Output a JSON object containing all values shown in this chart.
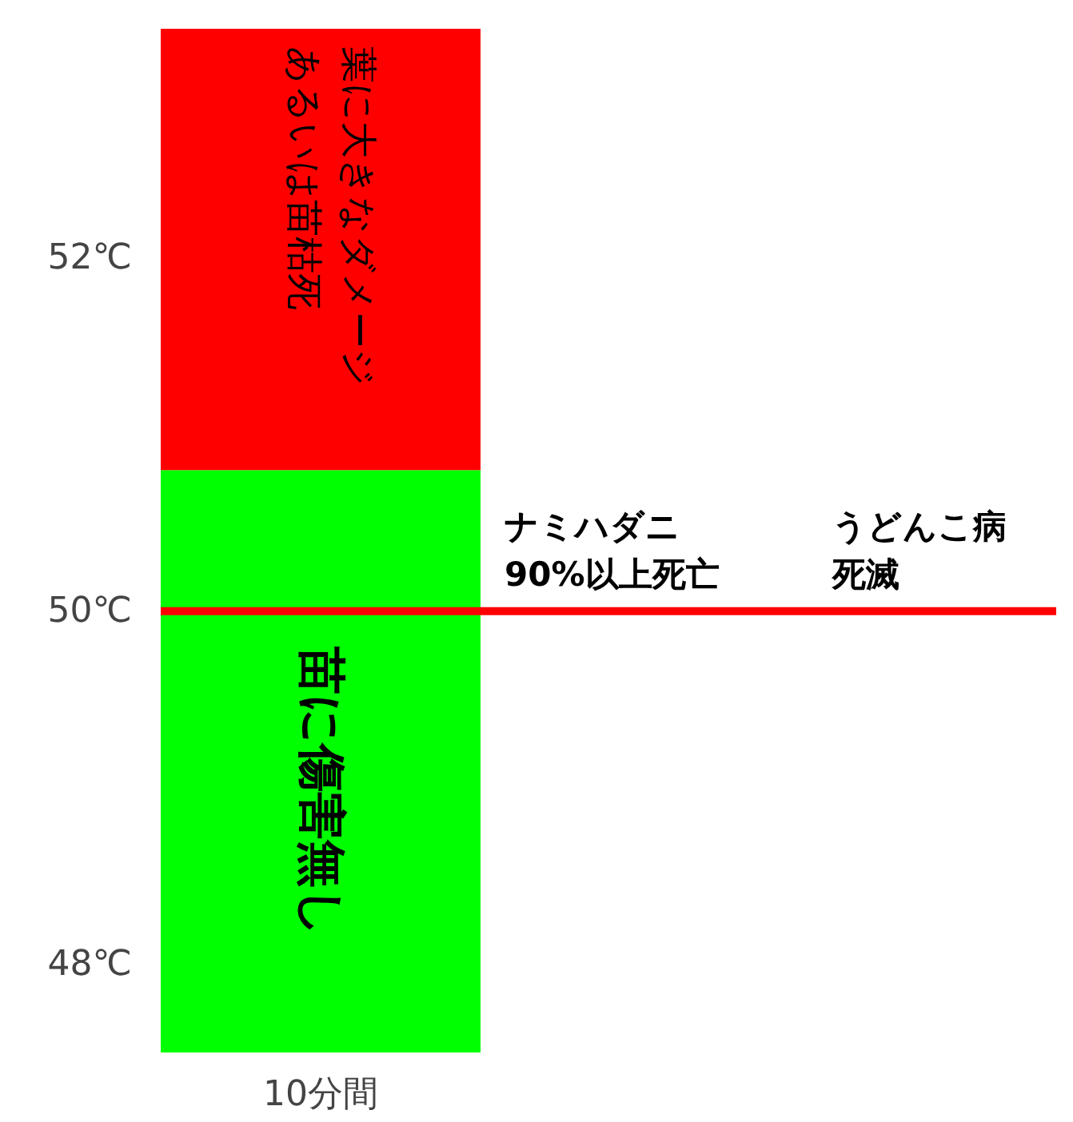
{
  "chart_data": {
    "type": "bar",
    "categories": [
      "10分間"
    ],
    "series": [
      {
        "name": "苗に傷害無し",
        "color": "#00ff00",
        "base": [
          47.5
        ],
        "values": [
          3.3
        ]
      },
      {
        "name": "葉に大きなダメージあるいは苗枯死",
        "color": "#ff0000",
        "base": [
          50.8
        ],
        "values": [
          2.5
        ]
      }
    ],
    "ylim": [
      47.5,
      53.35
    ],
    "yticks": [
      {
        "value": 48,
        "label": "48℃"
      },
      {
        "value": 50,
        "label": "50℃"
      },
      {
        "value": 52,
        "label": "52℃"
      }
    ],
    "ref_lines": [
      {
        "axis": "y",
        "value": 50,
        "color": "#ff0000"
      }
    ],
    "annotations": [
      "ナミハダニ",
      "90%以上死亡",
      "うどんこ病",
      "死滅"
    ],
    "grid": false
  }
}
